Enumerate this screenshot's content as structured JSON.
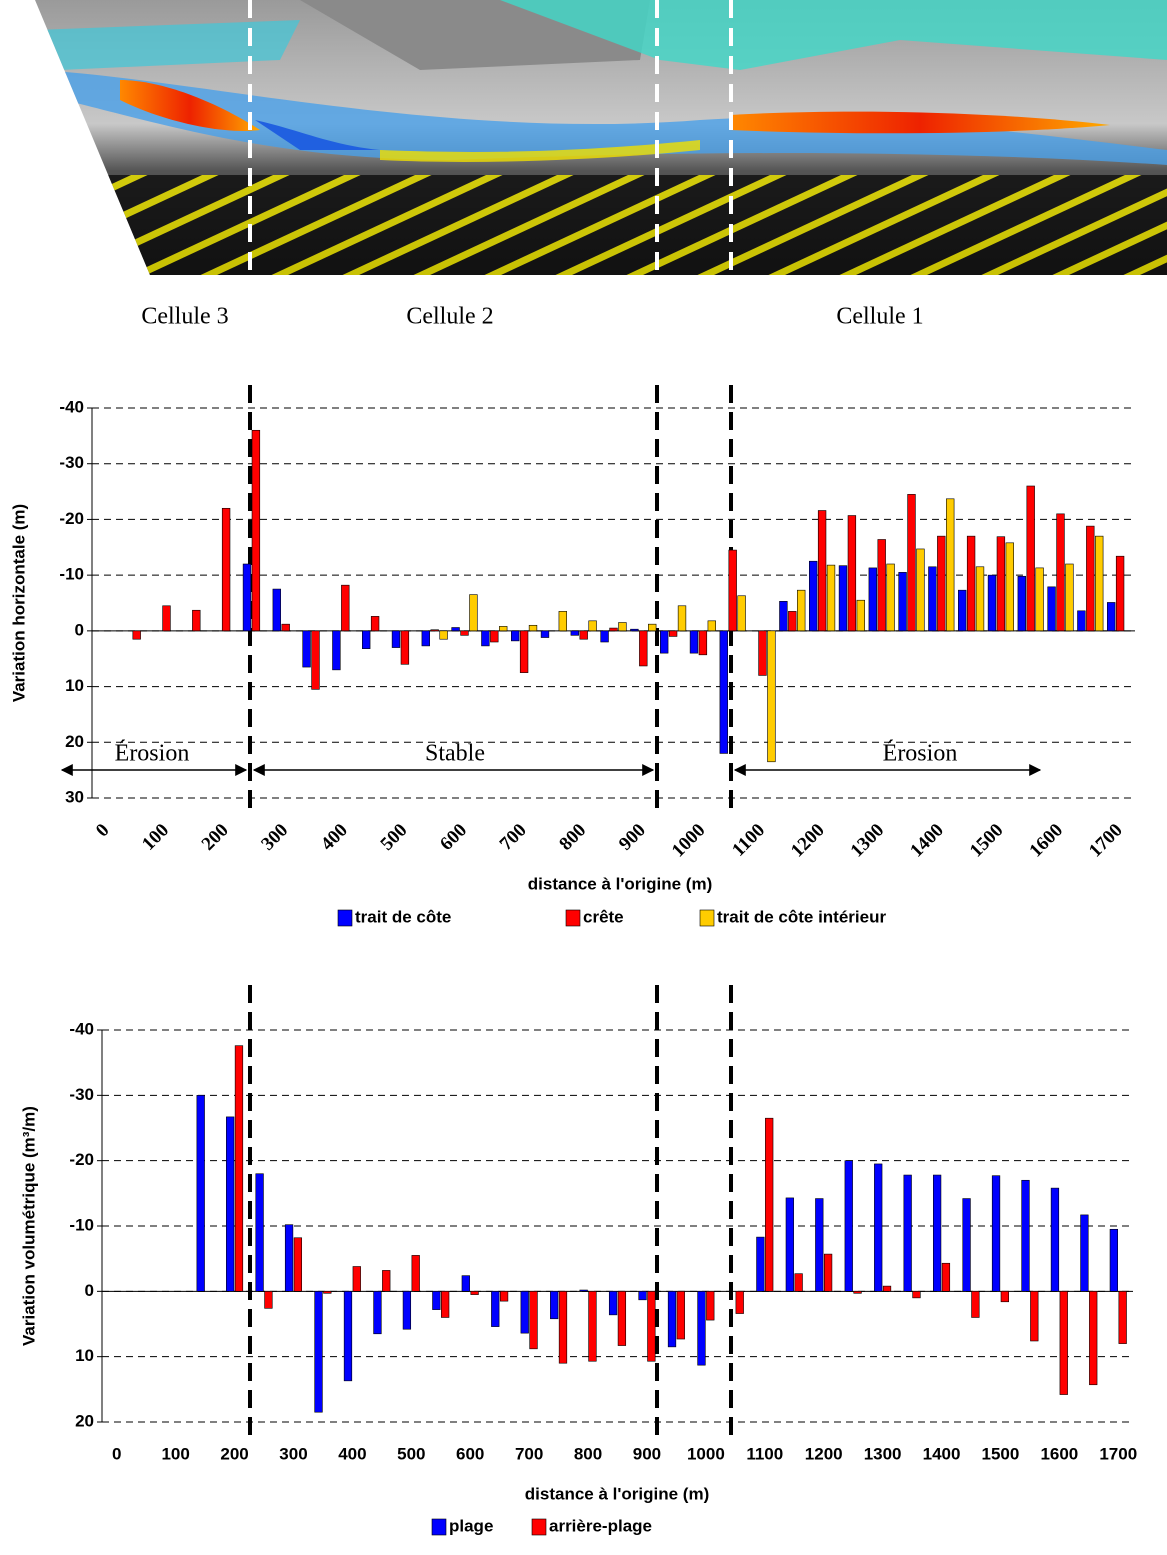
{
  "image_labels": [
    "Cellule 3",
    "Cellule 2",
    "Cellule 1"
  ],
  "chart_data": [
    {
      "type": "bar",
      "y_label": "Variation horizontale (m)",
      "x_label": "distance à l'origine (m)",
      "categories": [
        0,
        null,
        100,
        null,
        200,
        null,
        300,
        null,
        400,
        null,
        500,
        null,
        600,
        null,
        700,
        null,
        800,
        null,
        900,
        null,
        1000,
        null,
        1100,
        null,
        1200,
        null,
        1300,
        null,
        1400,
        null,
        1500,
        null,
        1600,
        null,
        1700
      ],
      "ylim": [
        -40,
        30
      ],
      "yticks": [
        -40,
        -30,
        -20,
        -10,
        0,
        10,
        20,
        30
      ],
      "y_inverted": true,
      "grid": true,
      "annotations": [
        "Érosion",
        "Stable",
        "Érosion"
      ],
      "series": [
        {
          "name": "trait de côte",
          "color": "#0000ff",
          "values": [
            null,
            null,
            null,
            null,
            null,
            -12,
            -7.5,
            6.5,
            7,
            3.2,
            3,
            2.7,
            -0.6,
            2.7,
            1.8,
            1.2,
            0.8,
            2,
            -0.3,
            4,
            4,
            22,
            null,
            -5.3,
            -12.5,
            -11.7,
            -11.3,
            -10.5,
            -11.5,
            -7.3,
            -10,
            -9.8,
            -7.9,
            -3.6,
            -5.1
          ]
        },
        {
          "name": "crête",
          "color": "#ff0000",
          "values": [
            null,
            1.5,
            -4.5,
            -3.7,
            -22,
            -36,
            -1.2,
            10.5,
            -8.2,
            -2.6,
            6,
            -0.2,
            0.8,
            2,
            7.5,
            null,
            1.5,
            -0.5,
            6.3,
            1,
            4.3,
            -14.5,
            8,
            -3.5,
            -21.6,
            -20.7,
            -16.4,
            -24.5,
            -17,
            -17,
            -16.9,
            -26,
            -21,
            -18.8,
            -13.4
          ]
        },
        {
          "name": "trait de côte intérieur",
          "color": "#ffcc00",
          "values": [
            null,
            null,
            null,
            null,
            null,
            null,
            null,
            null,
            null,
            null,
            null,
            1.5,
            -6.5,
            -0.8,
            -1,
            -3.5,
            -1.8,
            -1.5,
            -1.2,
            -4.5,
            -1.8,
            -6.3,
            23.5,
            -7.3,
            -11.8,
            -5.5,
            -12,
            -14.7,
            -23.7,
            -11.5,
            -15.8,
            -11.3,
            -12,
            -17,
            null
          ]
        }
      ]
    },
    {
      "type": "bar",
      "y_label": "Variation volumétrique (m³/m)",
      "x_label": "distance à l'origine (m)",
      "categories": [
        0,
        null,
        100,
        null,
        200,
        null,
        300,
        null,
        400,
        null,
        500,
        null,
        600,
        null,
        700,
        null,
        800,
        null,
        900,
        null,
        1000,
        null,
        1100,
        null,
        1200,
        null,
        1300,
        null,
        1400,
        null,
        1500,
        null,
        1600,
        null,
        1700
      ],
      "ylim": [
        -40,
        20
      ],
      "yticks": [
        -40,
        -30,
        -20,
        -10,
        0,
        10,
        20
      ],
      "y_inverted": true,
      "grid": true,
      "series": [
        {
          "name": "plage",
          "color": "#0000ff",
          "values": [
            null,
            null,
            null,
            -30,
            -26.7,
            -18,
            -10.2,
            18.5,
            13.7,
            6.5,
            5.8,
            2.8,
            -2.4,
            5.4,
            6.4,
            4.2,
            -0.2,
            3.6,
            1.3,
            8.5,
            11.3,
            0,
            -8.3,
            -14.3,
            -14.2,
            -20,
            -19.5,
            -17.8,
            -17.8,
            -14.2,
            -17.7,
            -17,
            -15.8,
            -11.7,
            -9.5
          ]
        },
        {
          "name": "arrière-plage",
          "color": "#ff0000",
          "values": [
            null,
            null,
            null,
            null,
            -37.6,
            2.6,
            -8.2,
            0.3,
            -3.8,
            -3.2,
            -5.5,
            4,
            0.5,
            1.5,
            8.8,
            11,
            10.7,
            8.3,
            10.7,
            7.3,
            4.4,
            3.4,
            -26.5,
            -2.7,
            -5.7,
            0.3,
            -0.8,
            1,
            -4.3,
            4,
            1.6,
            7.6,
            15.8,
            14.3,
            8
          ]
        }
      ]
    }
  ]
}
